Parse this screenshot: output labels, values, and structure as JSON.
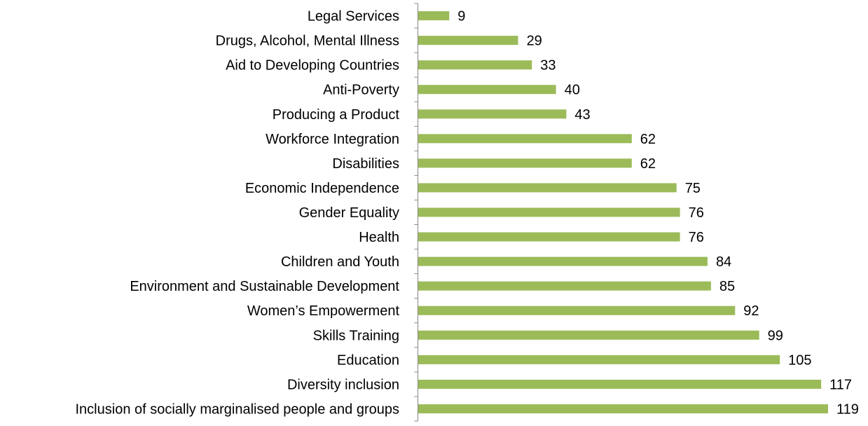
{
  "chart_data": {
    "type": "bar",
    "orientation": "horizontal",
    "title": "",
    "xlabel": "",
    "ylabel": "",
    "xlim": [
      0,
      122
    ],
    "grid": false,
    "legend": "none",
    "bar_color": "#9BBB59",
    "categories": [
      "Legal Services",
      "Drugs, Alcohol, Mental Illness",
      "Aid to Developing Countries",
      "Anti-Poverty",
      "Producing a Product",
      "Workforce Integration",
      "Disabilities",
      "Economic Independence",
      "Gender Equality",
      "Health",
      "Children and Youth",
      "Environment and Sustainable Development",
      "Women’s Empowerment",
      "Skills Training",
      "Education",
      "Diversity inclusion",
      "Inclusion of socially marginalised people and groups"
    ],
    "values": [
      9,
      29,
      33,
      40,
      43,
      62,
      62,
      75,
      76,
      76,
      84,
      85,
      92,
      99,
      105,
      117,
      119
    ]
  }
}
